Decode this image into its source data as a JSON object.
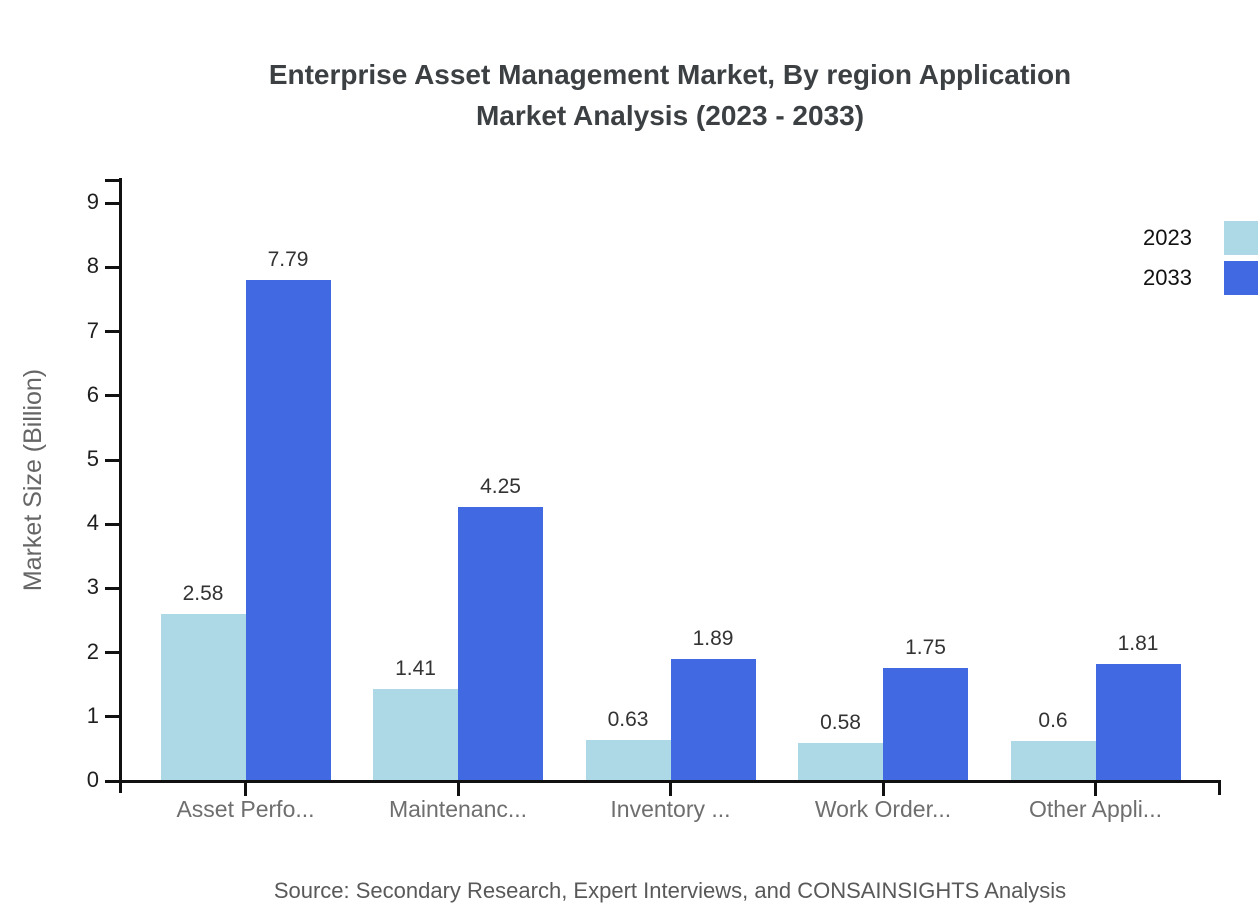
{
  "title_lines": [
    "Enterprise Asset Management Market, By region Application",
    "Market Analysis (2023 - 2033)"
  ],
  "source": "Source: Secondary Research, Expert Interviews, and CONSAINSIGHTS Analysis",
  "chart_data": {
    "type": "bar",
    "title": "Enterprise Asset Management Market, By region Application Market Analysis (2023 - 2033)",
    "categories": [
      "Asset Perfo...",
      "Maintenanc...",
      "Inventory ...",
      "Work Order...",
      "Other Appli..."
    ],
    "series": [
      {
        "name": "2023",
        "color": "#ADD8E6",
        "values": [
          2.58,
          1.41,
          0.63,
          0.58,
          0.6
        ]
      },
      {
        "name": "2033",
        "color": "#4169E1",
        "values": [
          7.79,
          4.25,
          1.89,
          1.75,
          1.81
        ]
      }
    ],
    "xlabel": "",
    "ylabel": "Market Size (Billion)",
    "ylim": [
      0,
      9
    ],
    "ytick_step": 1,
    "grid": false,
    "value_labels": true,
    "legend_position": "top-right",
    "axis_color": "#111111"
  }
}
